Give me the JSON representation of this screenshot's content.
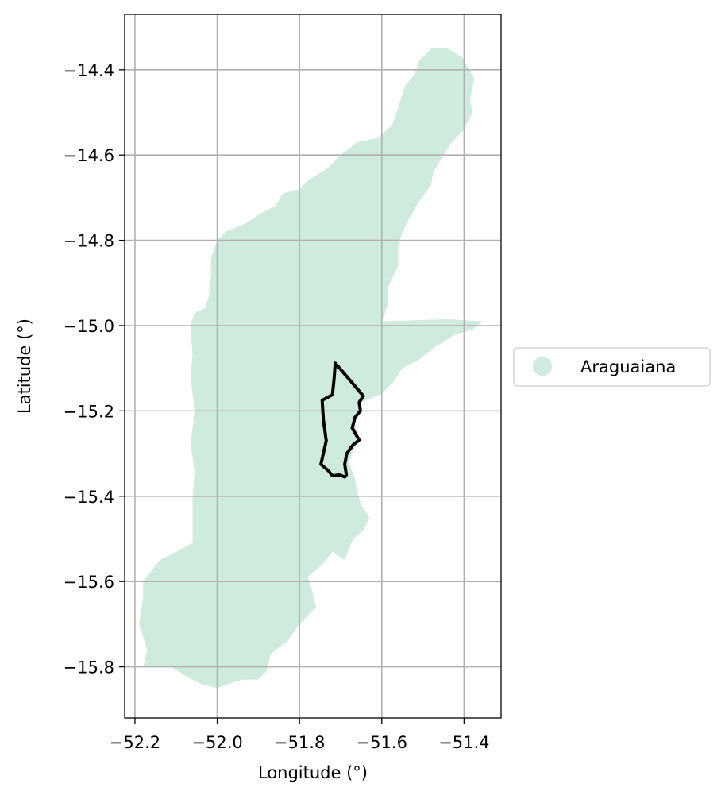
{
  "chart_data": {
    "type": "map",
    "title": "",
    "xlabel": "Longitude (°)",
    "ylabel": "Latitude (°)",
    "xlim": [
      -52.225,
      -51.31
    ],
    "ylim": [
      -15.92,
      -14.27
    ],
    "grid": true,
    "legend_position": "right",
    "xticks": [
      -52.2,
      -52.0,
      -51.8,
      -51.6,
      -51.4
    ],
    "yticks": [
      -14.4,
      -14.6,
      -14.8,
      -15.0,
      -15.2,
      -15.4,
      -15.6,
      -15.8
    ],
    "xtick_labels": [
      "−52.2",
      "−52.0",
      "−51.8",
      "−51.6",
      "−51.4"
    ],
    "ytick_labels": [
      "−14.4",
      "−14.6",
      "−14.8",
      "−15.0",
      "−15.2",
      "−15.4",
      "−15.6",
      "−15.8"
    ],
    "series": [
      {
        "name": "Araguaiana",
        "kind": "filled-region",
        "color": "#ceebde",
        "coordinates": [
          [
            -51.51,
            -14.38
          ],
          [
            -51.48,
            -14.35
          ],
          [
            -51.44,
            -14.35
          ],
          [
            -51.405,
            -14.37
          ],
          [
            -51.375,
            -14.42
          ],
          [
            -51.385,
            -14.47
          ],
          [
            -51.38,
            -14.5
          ],
          [
            -51.4,
            -14.54
          ],
          [
            -51.43,
            -14.57
          ],
          [
            -51.45,
            -14.6
          ],
          [
            -51.475,
            -14.64
          ],
          [
            -51.48,
            -14.67
          ],
          [
            -51.51,
            -14.71
          ],
          [
            -51.545,
            -14.77
          ],
          [
            -51.56,
            -14.81
          ],
          [
            -51.56,
            -14.86
          ],
          [
            -51.585,
            -14.91
          ],
          [
            -51.585,
            -14.95
          ],
          [
            -51.6,
            -14.99
          ],
          [
            -51.44,
            -14.985
          ],
          [
            -51.355,
            -14.99
          ],
          [
            -51.38,
            -15.01
          ],
          [
            -51.42,
            -15.02
          ],
          [
            -51.47,
            -15.05
          ],
          [
            -51.51,
            -15.08
          ],
          [
            -51.55,
            -15.1
          ],
          [
            -51.57,
            -15.13
          ],
          [
            -51.6,
            -15.16
          ],
          [
            -51.65,
            -15.18
          ],
          [
            -51.665,
            -15.22
          ],
          [
            -51.66,
            -15.27
          ],
          [
            -51.68,
            -15.32
          ],
          [
            -51.665,
            -15.36
          ],
          [
            -51.66,
            -15.39
          ],
          [
            -51.65,
            -15.42
          ],
          [
            -51.63,
            -15.45
          ],
          [
            -51.645,
            -15.48
          ],
          [
            -51.67,
            -15.5
          ],
          [
            -51.69,
            -15.55
          ],
          [
            -51.72,
            -15.53
          ],
          [
            -51.745,
            -15.56
          ],
          [
            -51.78,
            -15.59
          ],
          [
            -51.77,
            -15.62
          ],
          [
            -51.76,
            -15.66
          ],
          [
            -51.8,
            -15.7
          ],
          [
            -51.83,
            -15.74
          ],
          [
            -51.87,
            -15.77
          ],
          [
            -51.88,
            -15.81
          ],
          [
            -51.9,
            -15.83
          ],
          [
            -51.94,
            -15.83
          ],
          [
            -51.97,
            -15.84
          ],
          [
            -52.0,
            -15.85
          ],
          [
            -52.04,
            -15.84
          ],
          [
            -52.08,
            -15.82
          ],
          [
            -52.11,
            -15.8
          ],
          [
            -52.18,
            -15.8
          ],
          [
            -52.17,
            -15.76
          ],
          [
            -52.19,
            -15.7
          ],
          [
            -52.18,
            -15.64
          ],
          [
            -52.18,
            -15.6
          ],
          [
            -52.14,
            -15.55
          ],
          [
            -52.1,
            -15.53
          ],
          [
            -52.06,
            -15.51
          ],
          [
            -52.06,
            -15.46
          ],
          [
            -52.06,
            -15.4
          ],
          [
            -52.055,
            -15.34
          ],
          [
            -52.065,
            -15.28
          ],
          [
            -52.055,
            -15.2
          ],
          [
            -52.065,
            -15.12
          ],
          [
            -52.06,
            -15.07
          ],
          [
            -52.065,
            -15.0
          ],
          [
            -52.055,
            -14.97
          ],
          [
            -52.03,
            -14.96
          ],
          [
            -52.02,
            -14.93
          ],
          [
            -52.015,
            -14.88
          ],
          [
            -52.015,
            -14.84
          ],
          [
            -52.0,
            -14.8
          ],
          [
            -51.98,
            -14.78
          ],
          [
            -51.93,
            -14.76
          ],
          [
            -51.9,
            -14.74
          ],
          [
            -51.86,
            -14.72
          ],
          [
            -51.84,
            -14.69
          ],
          [
            -51.8,
            -14.68
          ],
          [
            -51.78,
            -14.66
          ],
          [
            -51.73,
            -14.63
          ],
          [
            -51.7,
            -14.6
          ],
          [
            -51.66,
            -14.57
          ],
          [
            -51.61,
            -14.56
          ],
          [
            -51.575,
            -14.53
          ],
          [
            -51.56,
            -14.49
          ],
          [
            -51.545,
            -14.44
          ],
          [
            -51.52,
            -14.41
          ]
        ]
      },
      {
        "name": "",
        "kind": "outline",
        "color": "#000000",
        "coordinates": [
          [
            -51.713,
            -15.088
          ],
          [
            -51.68,
            -15.125
          ],
          [
            -51.645,
            -15.165
          ],
          [
            -51.655,
            -15.18
          ],
          [
            -51.652,
            -15.2
          ],
          [
            -51.665,
            -15.215
          ],
          [
            -51.672,
            -15.24
          ],
          [
            -51.66,
            -15.26
          ],
          [
            -51.655,
            -15.268
          ],
          [
            -51.67,
            -15.28
          ],
          [
            -51.685,
            -15.3
          ],
          [
            -51.69,
            -15.325
          ],
          [
            -51.686,
            -15.35
          ],
          [
            -51.69,
            -15.355
          ],
          [
            -51.702,
            -15.35
          ],
          [
            -51.72,
            -15.352
          ],
          [
            -51.73,
            -15.34
          ],
          [
            -51.748,
            -15.325
          ],
          [
            -51.735,
            -15.27
          ],
          [
            -51.742,
            -15.22
          ],
          [
            -51.745,
            -15.175
          ],
          [
            -51.72,
            -15.162
          ],
          [
            -51.716,
            -15.125
          ]
        ]
      }
    ]
  },
  "legend": {
    "label": "Araguaiana",
    "color": "#ceebde"
  }
}
